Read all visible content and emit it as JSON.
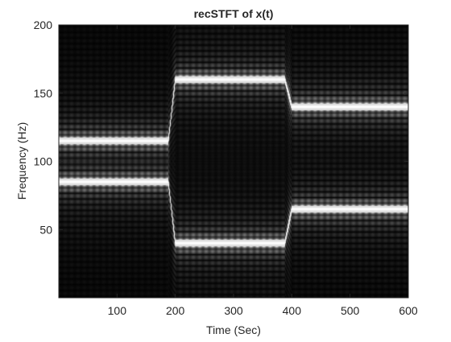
{
  "chart_data": {
    "type": "heatmap",
    "title": "recSTFT of x(t)",
    "xlabel": "Time (Sec)",
    "ylabel": "Frequency (Hz)",
    "xlim": [
      0,
      600
    ],
    "ylim": [
      0,
      200
    ],
    "xticks": [
      100,
      200,
      300,
      400,
      500,
      600
    ],
    "yticks": [
      50,
      100,
      150,
      200
    ],
    "colormap": "gray",
    "ridges": [
      {
        "t_start": 0,
        "t_end": 200,
        "frequency": 85
      },
      {
        "t_start": 0,
        "t_end": 200,
        "frequency": 115
      },
      {
        "t_start": 200,
        "t_end": 400,
        "frequency": 40
      },
      {
        "t_start": 200,
        "t_end": 400,
        "frequency": 160
      },
      {
        "t_start": 400,
        "t_end": 600,
        "frequency": 65
      },
      {
        "t_start": 400,
        "t_end": 600,
        "frequency": 140
      }
    ],
    "grid": false
  },
  "colors": {
    "background": "#ffffff",
    "axis": "#262626",
    "text": "#262626"
  }
}
